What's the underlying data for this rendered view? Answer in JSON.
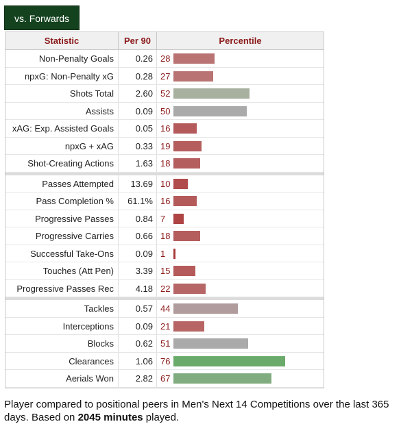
{
  "tab": {
    "label": "vs. Forwards"
  },
  "table": {
    "headers": {
      "statistic": "Statistic",
      "per90": "Per 90",
      "percentile": "Percentile"
    },
    "groups": [
      [
        {
          "statistic": "Non-Penalty Goals",
          "per90": "0.26",
          "percentile": 28,
          "color": "#b97373"
        },
        {
          "statistic": "npxG: Non-Penalty xG",
          "per90": "0.28",
          "percentile": 27,
          "color": "#b97373"
        },
        {
          "statistic": "Shots Total",
          "per90": "2.60",
          "percentile": 52,
          "color": "#a8b0a0"
        },
        {
          "statistic": "Assists",
          "per90": "0.09",
          "percentile": 50,
          "color": "#aaaaaa"
        },
        {
          "statistic": "xAG: Exp. Assisted Goals",
          "per90": "0.05",
          "percentile": 16,
          "color": "#b45a5a"
        },
        {
          "statistic": "npxG + xAG",
          "per90": "0.33",
          "percentile": 19,
          "color": "#b45e5e"
        },
        {
          "statistic": "Shot-Creating Actions",
          "per90": "1.63",
          "percentile": 18,
          "color": "#b45e5e"
        }
      ],
      [
        {
          "statistic": "Passes Attempted",
          "per90": "13.69",
          "percentile": 10,
          "color": "#b04c4c"
        },
        {
          "statistic": "Pass Completion %",
          "per90": "61.1%",
          "percentile": 16,
          "color": "#b45a5a"
        },
        {
          "statistic": "Progressive Passes",
          "per90": "0.84",
          "percentile": 7,
          "color": "#ae4444"
        },
        {
          "statistic": "Progressive Carries",
          "per90": "0.66",
          "percentile": 18,
          "color": "#b45e5e"
        },
        {
          "statistic": "Successful Take-Ons",
          "per90": "0.09",
          "percentile": 1,
          "color": "#a83a3a"
        },
        {
          "statistic": "Touches (Att Pen)",
          "per90": "3.39",
          "percentile": 15,
          "color": "#b45a5a"
        },
        {
          "statistic": "Progressive Passes Rec",
          "per90": "4.18",
          "percentile": 22,
          "color": "#b66666"
        }
      ],
      [
        {
          "statistic": "Tackles",
          "per90": "0.57",
          "percentile": 44,
          "color": "#b09c9c"
        },
        {
          "statistic": "Interceptions",
          "per90": "0.09",
          "percentile": 21,
          "color": "#b66464"
        },
        {
          "statistic": "Blocks",
          "per90": "0.62",
          "percentile": 51,
          "color": "#aaaaaa"
        },
        {
          "statistic": "Clearances",
          "per90": "1.06",
          "percentile": 76,
          "color": "#6aaa6a"
        },
        {
          "statistic": "Aerials Won",
          "per90": "2.82",
          "percentile": 67,
          "color": "#80ac80"
        }
      ]
    ]
  },
  "footer": {
    "text_before": "Player compared to positional peers in Men's Next 14 Competitions over the last 365 days. Based on ",
    "minutes": "2045 minutes",
    "text_after": " played."
  },
  "chart_data": {
    "type": "bar",
    "categories": [
      "Non-Penalty Goals",
      "npxG: Non-Penalty xG",
      "Shots Total",
      "Assists",
      "xAG: Exp. Assisted Goals",
      "npxG + xAG",
      "Shot-Creating Actions",
      "Passes Attempted",
      "Pass Completion %",
      "Progressive Passes",
      "Progressive Carries",
      "Successful Take-Ons",
      "Touches (Att Pen)",
      "Progressive Passes Rec",
      "Tackles",
      "Interceptions",
      "Blocks",
      "Clearances",
      "Aerials Won"
    ],
    "values": [
      28,
      27,
      52,
      50,
      16,
      19,
      18,
      10,
      16,
      7,
      18,
      1,
      15,
      22,
      44,
      21,
      51,
      76,
      67
    ],
    "per90": [
      "0.26",
      "0.28",
      "2.60",
      "0.09",
      "0.05",
      "0.33",
      "1.63",
      "13.69",
      "61.1%",
      "0.84",
      "0.66",
      "0.09",
      "3.39",
      "4.18",
      "0.57",
      "0.09",
      "0.62",
      "1.06",
      "2.82"
    ],
    "xlim": [
      0,
      100
    ]
  }
}
